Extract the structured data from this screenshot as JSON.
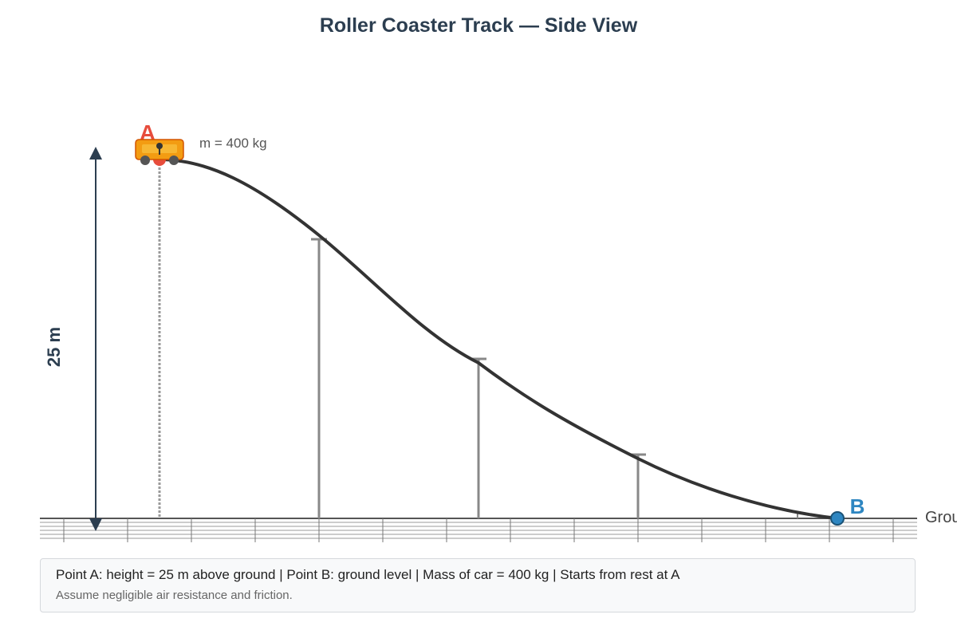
{
  "title": "Roller Coaster Track — Side View",
  "height_label": "25 m",
  "mass_label": "m = 400 kg",
  "point_a": {
    "label": "A",
    "color": "#e74c3c"
  },
  "point_b": {
    "label": "B",
    "color": "#2e86c1"
  },
  "ground_label": "Ground",
  "cart": {
    "body_color": "#f39c12",
    "border_color": "#d35400"
  },
  "track_color": "#333333",
  "info": {
    "main": "Point A: height = 25 m above ground | Point B: ground level | Mass of car = 400 kg | Starts from rest at A",
    "note": "Assume negligible air resistance and friction."
  }
}
